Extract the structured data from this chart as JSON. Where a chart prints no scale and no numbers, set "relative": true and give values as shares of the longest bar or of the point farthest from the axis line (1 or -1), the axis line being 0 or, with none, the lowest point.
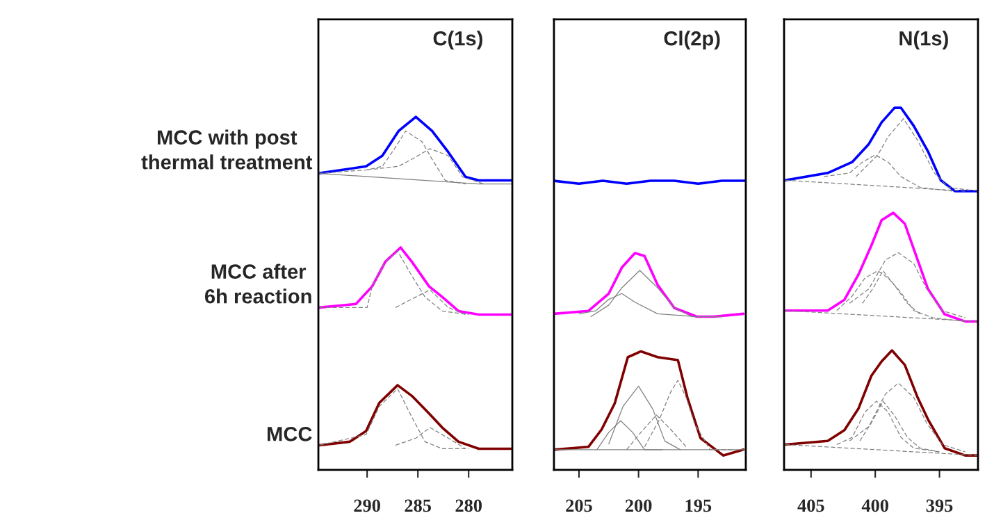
{
  "chart_data": [
    {
      "type": "line",
      "title": "C(1s)",
      "relative": true,
      "xlim": [
        294.8,
        275.7
      ],
      "xticks": [
        290,
        285,
        280
      ],
      "tick_labels": "x",
      "series": [
        {
          "name": "MCC with post\nthermal treatment",
          "color": "#0000ff",
          "line_style": "solid",
          "x": [
            294.8,
            290.1,
            288.5,
            286.9,
            285.2,
            283.6,
            282.0,
            280.3,
            279.0,
            277.5,
            275.8
          ],
          "values": [
            0.84,
            0.86,
            0.89,
            0.96,
            1.0,
            0.96,
            0.9,
            0.83,
            0.82,
            0.82,
            0.82
          ]
        },
        {
          "name": "MCC after\n6h reaction",
          "color": "#ff00ff",
          "line_style": "solid",
          "x": [
            294.7,
            291.1,
            289.5,
            288.2,
            286.7,
            285.6,
            283.9,
            282.6,
            281.0,
            279.0,
            275.8
          ],
          "values": [
            0.46,
            0.47,
            0.52,
            0.59,
            0.63,
            0.59,
            0.52,
            0.49,
            0.45,
            0.44,
            0.44
          ]
        },
        {
          "name": "MCC",
          "color": "#800000",
          "line_style": "solid",
          "x": [
            294.7,
            291.7,
            290.1,
            288.8,
            287.0,
            285.6,
            283.9,
            282.6,
            281.0,
            279.0,
            275.8
          ],
          "values": [
            0.07,
            0.08,
            0.11,
            0.19,
            0.24,
            0.21,
            0.16,
            0.12,
            0.08,
            0.06,
            0.06
          ]
        },
        {
          "color": "#808080",
          "line_style": "dashed",
          "x": [
            294.8,
            290,
            288.5,
            287.3,
            286.2,
            284.6,
            283.6,
            282.3,
            280.3
          ],
          "values": [
            0.84,
            0.85,
            0.86,
            0.91,
            0.96,
            0.93,
            0.88,
            0.82,
            0.81
          ]
        },
        {
          "color": "#808080",
          "line_style": "dashed",
          "x": [
            290,
            286.9,
            285.6,
            283.8,
            282.0,
            280.6,
            278.5
          ],
          "values": [
            0.85,
            0.86,
            0.88,
            0.91,
            0.89,
            0.83,
            0.81
          ]
        },
        {
          "color": "#808080",
          "line_style": "solid",
          "x": [
            294.8,
            279,
            275.8
          ],
          "values": [
            0.84,
            0.81,
            0.81
          ]
        },
        {
          "color": "#808080",
          "line_style": "dashed",
          "x": [
            294.7,
            290,
            289.5,
            288.2,
            287.0,
            285.6,
            284.3,
            282.6,
            280
          ],
          "values": [
            0.46,
            0.46,
            0.52,
            0.59,
            0.62,
            0.55,
            0.49,
            0.45,
            0.44
          ]
        },
        {
          "color": "#808080",
          "line_style": "dashed",
          "x": [
            287.2,
            285.2,
            283.8,
            282.0,
            280.3
          ],
          "values": [
            0.46,
            0.49,
            0.51,
            0.46,
            0.44
          ]
        },
        {
          "color": "#808080",
          "line_style": "dashed",
          "x": [
            294.7,
            290.1,
            288.8,
            287.0,
            285.6,
            284.3,
            282.6,
            280
          ],
          "values": [
            0.07,
            0.1,
            0.18,
            0.23,
            0.15,
            0.08,
            0.06,
            0.06
          ]
        },
        {
          "color": "#808080",
          "line_style": "dashed",
          "x": [
            287.2,
            285.2,
            283.8,
            282.0,
            280.3
          ],
          "values": [
            0.07,
            0.09,
            0.12,
            0.09,
            0.06
          ]
        }
      ]
    },
    {
      "type": "line",
      "title": "Cl(2p)",
      "relative": true,
      "xlim": [
        207.1,
        191.0
      ],
      "xticks": [
        205,
        200,
        195
      ],
      "tick_labels": "x",
      "series": [
        {
          "color": "#0000ff",
          "line_style": "solid",
          "x": [
            207.1,
            205,
            203,
            201,
            199,
            197,
            195,
            193,
            191
          ],
          "values": [
            1.0,
            0.99,
            1.0,
            0.99,
            1.0,
            1.0,
            0.99,
            1.0,
            1.0
          ]
        },
        {
          "color": "#ff00ff",
          "line_style": "solid",
          "x": [
            207.1,
            204.2,
            202.5,
            201.4,
            200.3,
            199.5,
            198.4,
            197.0,
            195.1,
            193.7,
            191.2
          ],
          "values": [
            0.54,
            0.55,
            0.61,
            0.7,
            0.75,
            0.74,
            0.64,
            0.56,
            0.53,
            0.53,
            0.54
          ]
        },
        {
          "color": "#800000",
          "line_style": "solid",
          "x": [
            207.1,
            204.2,
            203.1,
            202.0,
            200.9,
            199.8,
            198.4,
            196.7,
            195.9,
            194.8,
            192.9,
            191.2
          ],
          "values": [
            0.07,
            0.08,
            0.14,
            0.23,
            0.39,
            0.41,
            0.39,
            0.38,
            0.25,
            0.11,
            0.05,
            0.07
          ]
        },
        {
          "color": "#808080",
          "line_style": "solid",
          "x": [
            205,
            203.6,
            202.5,
            201.4,
            200.3,
            198.4,
            195
          ],
          "values": [
            0.54,
            0.55,
            0.59,
            0.61,
            0.58,
            0.54,
            0.53
          ]
        },
        {
          "color": "#808080",
          "line_style": "solid",
          "x": [
            204,
            202.5,
            201.4,
            199.9,
            198.4,
            197.0,
            195.5,
            193
          ],
          "values": [
            0.53,
            0.57,
            0.63,
            0.69,
            0.63,
            0.56,
            0.53,
            0.53
          ]
        },
        {
          "color": "#808080",
          "line_style": "solid",
          "x": [
            203.5,
            202.5,
            201.5,
            200.5,
            199.5,
            198
          ],
          "values": [
            0.07,
            0.13,
            0.17,
            0.13,
            0.07,
            0.07
          ]
        },
        {
          "color": "#808080",
          "line_style": "solid",
          "x": [
            202.5,
            201.3,
            200.0,
            198.8,
            197.8,
            196.5
          ],
          "values": [
            0.09,
            0.22,
            0.29,
            0.21,
            0.1,
            0.07
          ]
        },
        {
          "color": "#808080",
          "line_style": "dashed",
          "x": [
            201,
            199.8,
            198.5,
            197.3,
            196
          ],
          "values": [
            0.07,
            0.13,
            0.19,
            0.14,
            0.08
          ]
        },
        {
          "color": "#808080",
          "line_style": "dashed",
          "x": [
            199.5,
            198.3,
            197.3,
            196.7,
            196,
            195.3,
            194,
            192
          ],
          "values": [
            0.08,
            0.17,
            0.27,
            0.31,
            0.25,
            0.16,
            0.07,
            0.07
          ]
        },
        {
          "color": "#808080",
          "line_style": "solid",
          "x": [
            207.1,
            191.0
          ],
          "values": [
            0.07,
            0.07
          ]
        }
      ]
    },
    {
      "type": "line",
      "title": "N(1s)",
      "relative": true,
      "xlim": [
        407.1,
        392.0
      ],
      "xticks": [
        405,
        400,
        395
      ],
      "tick_labels": "x",
      "series": [
        {
          "color": "#0000ff",
          "line_style": "solid",
          "x": [
            407.0,
            403.7,
            401.8,
            400.5,
            399.5,
            398.5,
            398.0,
            397.0,
            395.9,
            394.9,
            393.8,
            392.0
          ],
          "values": [
            0.8,
            0.82,
            0.85,
            0.9,
            0.96,
            1.0,
            1.0,
            0.95,
            0.88,
            0.8,
            0.77,
            0.77
          ]
        },
        {
          "color": "#ff00ff",
          "line_style": "solid",
          "x": [
            407.0,
            403.7,
            402.4,
            401.3,
            400.3,
            399.5,
            398.6,
            397.7,
            396.7,
            395.9,
            394.6,
            393.0,
            392.0
          ],
          "values": [
            0.44,
            0.44,
            0.47,
            0.54,
            0.62,
            0.69,
            0.71,
            0.68,
            0.58,
            0.5,
            0.43,
            0.41,
            0.41
          ]
        },
        {
          "color": "#800000",
          "line_style": "solid",
          "x": [
            407.0,
            403.7,
            402.4,
            401.3,
            400.3,
            399.5,
            398.7,
            397.7,
            396.7,
            395.9,
            394.6,
            393.0,
            392.0
          ],
          "values": [
            0.07,
            0.08,
            0.11,
            0.17,
            0.26,
            0.3,
            0.33,
            0.29,
            0.2,
            0.14,
            0.06,
            0.04,
            0.04
          ]
        },
        {
          "color": "#808080",
          "line_style": "dashed",
          "x": [
            401.5,
            399.8,
            399.0,
            397.8,
            396.7,
            395.4,
            394.3,
            392
          ],
          "values": [
            0.81,
            0.87,
            0.92,
            0.97,
            0.91,
            0.82,
            0.78,
            0.77
          ]
        },
        {
          "color": "#808080",
          "line_style": "dashed",
          "x": [
            404,
            402,
            401,
            400,
            399,
            398,
            396.5,
            394
          ],
          "values": [
            0.81,
            0.82,
            0.85,
            0.87,
            0.85,
            0.81,
            0.78,
            0.77
          ]
        },
        {
          "color": "#808080",
          "line_style": "dashed",
          "x": [
            407.0,
            393.0
          ],
          "values": [
            0.8,
            0.77
          ]
        },
        {
          "color": "#808080",
          "line_style": "dashed",
          "x": [
            402,
            400.5,
            399.2,
            398.2,
            397.0,
            396,
            394.8,
            393
          ],
          "values": [
            0.46,
            0.5,
            0.58,
            0.6,
            0.57,
            0.5,
            0.44,
            0.42
          ]
        },
        {
          "color": "#808080",
          "line_style": "dashed",
          "x": [
            403,
            401.8,
            400.8,
            399.8,
            399.0,
            398.0,
            397.0,
            395.5,
            393
          ],
          "values": [
            0.44,
            0.48,
            0.53,
            0.55,
            0.53,
            0.49,
            0.44,
            0.42,
            0.41
          ]
        },
        {
          "color": "#808080",
          "line_style": "dashed",
          "x": [
            401,
            400.2,
            399.4,
            398.5,
            397.5,
            396.5
          ],
          "values": [
            0.46,
            0.5,
            0.55,
            0.51,
            0.46,
            0.43
          ]
        },
        {
          "color": "#808080",
          "line_style": "dashed",
          "x": [
            407.0,
            392.0
          ],
          "values": [
            0.44,
            0.41
          ]
        },
        {
          "color": "#808080",
          "line_style": "dashed",
          "x": [
            402,
            400.5,
            399.2,
            398.2,
            397,
            396,
            394.8,
            393
          ],
          "values": [
            0.08,
            0.12,
            0.21,
            0.24,
            0.2,
            0.13,
            0.07,
            0.05
          ]
        },
        {
          "color": "#808080",
          "line_style": "dashed",
          "x": [
            403,
            401.8,
            400.8,
            399.9,
            399.0,
            398.0,
            397,
            395
          ],
          "values": [
            0.07,
            0.09,
            0.16,
            0.19,
            0.16,
            0.09,
            0.06,
            0.05
          ]
        },
        {
          "color": "#808080",
          "line_style": "dashed",
          "x": [
            401.2,
            400.3,
            399.4,
            398.5,
            397.5,
            396.5,
            395
          ],
          "values": [
            0.08,
            0.13,
            0.19,
            0.15,
            0.09,
            0.06,
            0.05
          ]
        },
        {
          "color": "#808080",
          "line_style": "dashed",
          "x": [
            407.0,
            392.0
          ],
          "values": [
            0.07,
            0.04
          ]
        }
      ]
    }
  ]
}
